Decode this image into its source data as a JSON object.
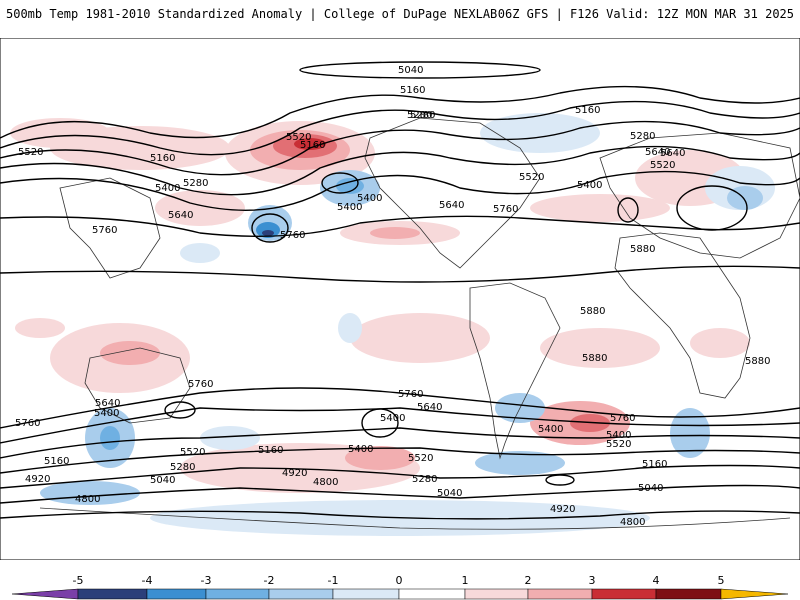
{
  "header": {
    "left": "500mb Temp 1981-2010 Standardized Anomaly | College of DuPage NEXLAB",
    "right": "06Z GFS | F126 Valid: 12Z MON MAR 31 2025"
  },
  "colors": {
    "strong_neg": "#7a3fa8",
    "neg5": "#2b3f7a",
    "neg4": "#3b8fd1",
    "neg3": "#6fb0e2",
    "neg2": "#a9cdec",
    "neg1": "#dbe9f6",
    "pos1": "#f7d9da",
    "pos2": "#f2aeb0",
    "pos3": "#e26f74",
    "pos4": "#c92e35",
    "pos5": "#7e0f14",
    "strong_pos": "#f5b800"
  },
  "colorbar": {
    "ticks": [
      "-5",
      "-4",
      "-3",
      "-2",
      "-1",
      "0",
      "1",
      "2",
      "3",
      "4",
      "5"
    ]
  },
  "contour_labels": [
    "5040",
    "5160",
    "5280",
    "5520",
    "5160",
    "5280",
    "5640",
    "5760",
    "5280",
    "5520",
    "5400",
    "5640",
    "5400",
    "5400",
    "5520",
    "5640",
    "5520",
    "5760",
    "5400",
    "5160",
    "5400",
    "5280",
    "5160",
    "5640",
    "5760",
    "5880",
    "5880",
    "5880",
    "5880",
    "5760",
    "5760",
    "5640",
    "5400",
    "5640",
    "5400",
    "5520",
    "5760",
    "5760",
    "5400",
    "5400",
    "5520",
    "5520",
    "5280",
    "5160",
    "5160",
    "4920",
    "4920",
    "4800",
    "4800",
    "5040",
    "5040",
    "5040",
    "5280",
    "5160",
    "4920",
    "4800"
  ]
}
